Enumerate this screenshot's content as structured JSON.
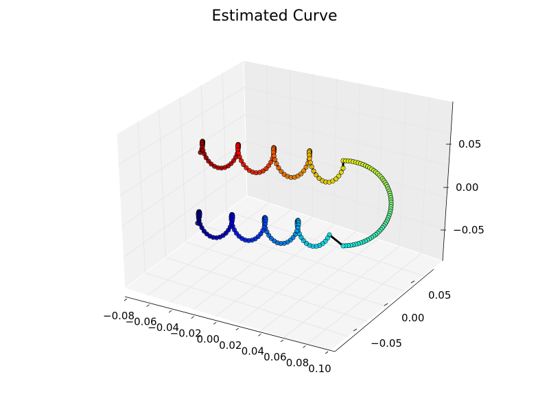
{
  "chart_data": {
    "type": "scatter3d",
    "title": "Estimated Curve",
    "xlabel": "",
    "ylabel": "",
    "zlabel": "",
    "xlim": [
      -0.08,
      0.1
    ],
    "ylim": [
      -0.09,
      0.09
    ],
    "zlim": [
      -0.09,
      0.09
    ],
    "x_ticks": [
      "−0.08",
      "−0.06",
      "−0.04",
      "−0.02",
      "0.00",
      "0.02",
      "0.04",
      "0.06",
      "0.08",
      "0.10"
    ],
    "y_ticks": [
      "−0.05",
      "0.00",
      "0.05"
    ],
    "z_ticks": [
      "−0.05",
      "0.00",
      "0.05"
    ],
    "grid": true,
    "colormap": "jet",
    "marker_edge_color": "#000000",
    "curve": {
      "description_units": "data",
      "n_points": 240,
      "helix_radius": 0.015,
      "helix_turns": 5,
      "lower_branch": {
        "x_start": -0.07,
        "x_end": 0.05,
        "y": -0.04,
        "z": -0.03
      },
      "upper_branch": {
        "x_start": -0.07,
        "x_end": 0.04,
        "y": 0.03,
        "z": 0.04
      },
      "bend_x": 0.085
    }
  }
}
